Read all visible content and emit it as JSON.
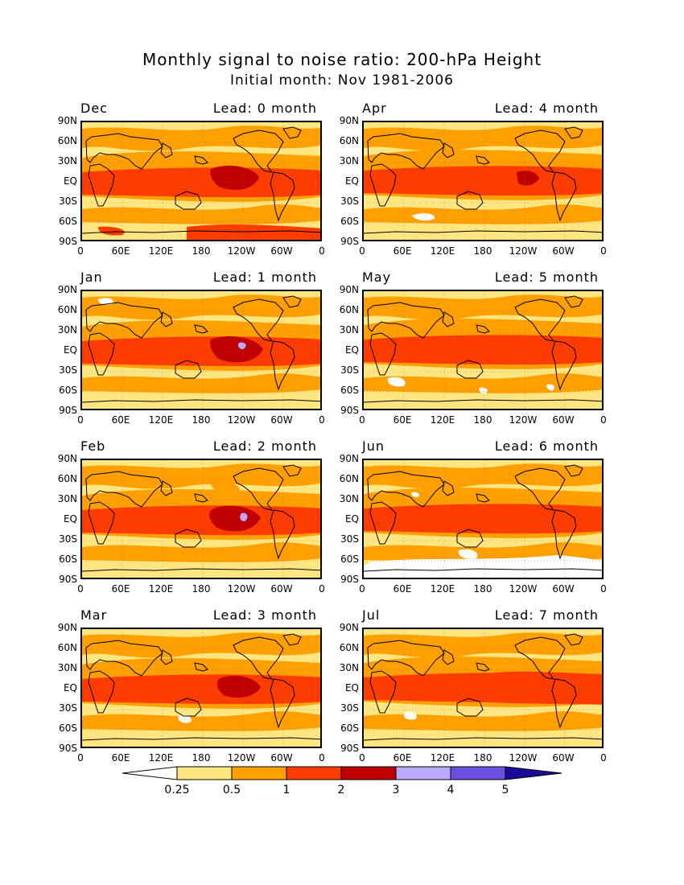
{
  "header": {
    "title": "Monthly signal to noise ratio: 200-hPa Height",
    "subtitle": "Initial month: Nov 1981-2006"
  },
  "panels": [
    {
      "month": "Dec",
      "lead": "Lead: 0 month"
    },
    {
      "month": "Apr",
      "lead": "Lead: 4 month"
    },
    {
      "month": "Jan",
      "lead": "Lead: 1 month"
    },
    {
      "month": "May",
      "lead": "Lead: 5 month"
    },
    {
      "month": "Feb",
      "lead": "Lead: 2 month"
    },
    {
      "month": "Jun",
      "lead": "Lead: 6 month"
    },
    {
      "month": "Mar",
      "lead": "Lead: 3 month"
    },
    {
      "month": "Jul",
      "lead": "Lead: 7 month"
    }
  ],
  "axes": {
    "lat_ticks": [
      "90N",
      "60N",
      "30N",
      "EQ",
      "30S",
      "60S",
      "90S"
    ],
    "lon_ticks": [
      "0",
      "60E",
      "120E",
      "180",
      "120W",
      "60W",
      "0"
    ]
  },
  "colorbar": {
    "labels": [
      "0.25",
      "0.5",
      "1",
      "2",
      "3",
      "4",
      "5"
    ],
    "colors": [
      "#ffffff",
      "#ffe680",
      "#ffa000",
      "#ff3c00",
      "#c00000",
      "#bbaaff",
      "#6a4fe0",
      "#1a0a99"
    ]
  },
  "palette": {
    "below_025": "#ffffff",
    "r025_05": "#ffe680",
    "r05_1": "#ffa000",
    "r1_2": "#ff3c00",
    "r2_3": "#c00000",
    "r3_4": "#bbaaff"
  }
}
